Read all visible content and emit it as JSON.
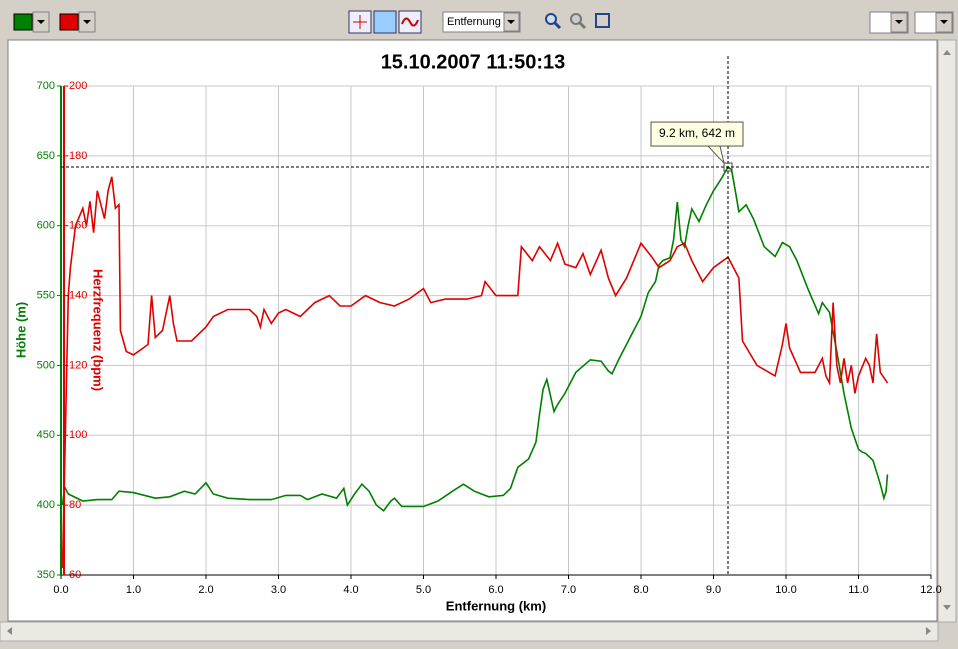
{
  "toolbar": {
    "axis_combo": "Entfernung"
  },
  "chart_data": {
    "type": "line",
    "title": "15.10.2007 11:50:13",
    "x_label": "Entfernung (km)",
    "y_label": "Höhe (m)",
    "y2_label": "Herzfrequenz (bpm)",
    "xlim": [
      0,
      12
    ],
    "ylim": [
      350,
      700
    ],
    "y2lim": [
      60,
      200
    ],
    "xticks": [
      {
        "value": 0,
        "label": "0.0"
      },
      {
        "value": 1,
        "label": "1.0"
      },
      {
        "value": 2,
        "label": "2.0"
      },
      {
        "value": 3,
        "label": "3.0"
      },
      {
        "value": 4,
        "label": "4.0"
      },
      {
        "value": 5,
        "label": "5.0"
      },
      {
        "value": 6,
        "label": "6.0"
      },
      {
        "value": 7,
        "label": "7.0"
      },
      {
        "value": 8,
        "label": "8.0"
      },
      {
        "value": 9,
        "label": "9.0"
      },
      {
        "value": 10,
        "label": "10.0"
      },
      {
        "value": 11,
        "label": "11.0"
      },
      {
        "value": 12,
        "label": "12.0"
      }
    ],
    "yticks": [
      350,
      400,
      450,
      500,
      550,
      600,
      650,
      700
    ],
    "y2ticks": [
      60,
      80,
      100,
      120,
      140,
      160,
      180,
      200
    ],
    "grid": true,
    "series": [
      {
        "name": "Höhe (m)",
        "color": "#008000",
        "x": [
          0.02,
          0.05,
          0.1,
          0.3,
          0.5,
          0.7,
          0.8,
          1.0,
          1.3,
          1.5,
          1.7,
          1.85,
          2.0,
          2.1,
          2.3,
          2.6,
          2.9,
          3.1,
          3.3,
          3.4,
          3.6,
          3.8,
          3.9,
          3.95,
          4.05,
          4.15,
          4.25,
          4.35,
          4.45,
          4.55,
          4.6,
          4.7,
          5.0,
          5.2,
          5.4,
          5.55,
          5.7,
          5.9,
          6.1,
          6.2,
          6.3,
          6.45,
          6.55,
          6.6,
          6.65,
          6.7,
          6.8,
          6.85,
          6.95,
          7.1,
          7.3,
          7.45,
          7.55,
          7.6,
          7.7,
          7.85,
          8.0,
          8.1,
          8.2,
          8.25,
          8.3,
          8.4,
          8.45,
          8.5,
          8.55,
          8.6,
          8.65,
          8.7,
          8.8,
          8.9,
          9.0,
          9.1,
          9.2,
          9.25,
          9.3,
          9.35,
          9.45,
          9.55,
          9.7,
          9.85,
          9.95,
          10.05,
          10.15,
          10.3,
          10.45,
          10.5,
          10.6,
          10.7,
          10.8,
          10.9,
          11.0,
          11.05,
          11.1,
          11.2,
          11.3,
          11.35,
          11.38,
          11.4
        ],
        "values": [
          400,
          413,
          408,
          403,
          404,
          404,
          410,
          409,
          405,
          406,
          410,
          408,
          416,
          408,
          405,
          404,
          404,
          407,
          407,
          404,
          408,
          405,
          412,
          400,
          408,
          415,
          410,
          400,
          396,
          403,
          405,
          399,
          399,
          403,
          410,
          415,
          410,
          406,
          407,
          412,
          427,
          433,
          445,
          465,
          483,
          490,
          467,
          472,
          480,
          495,
          504,
          503,
          496,
          494,
          505,
          520,
          535,
          552,
          560,
          572,
          575,
          577,
          590,
          617,
          590,
          585,
          600,
          612,
          603,
          615,
          625,
          633,
          642,
          640,
          625,
          610,
          615,
          605,
          585,
          578,
          588,
          585,
          575,
          555,
          537,
          545,
          538,
          510,
          480,
          455,
          440,
          438,
          437,
          432,
          415,
          405,
          410,
          422
        ]
      },
      {
        "name": "Herzfrequenz (bpm)",
        "color": "#e00000",
        "axis": "y2",
        "x": [
          0.02,
          0.05,
          0.08,
          0.1,
          0.13,
          0.2,
          0.3,
          0.35,
          0.4,
          0.45,
          0.5,
          0.6,
          0.65,
          0.7,
          0.75,
          0.8,
          0.82,
          0.9,
          1.0,
          1.2,
          1.25,
          1.3,
          1.4,
          1.5,
          1.55,
          1.6,
          1.8,
          2.0,
          2.1,
          2.3,
          2.6,
          2.7,
          2.75,
          2.8,
          2.9,
          3.0,
          3.1,
          3.3,
          3.5,
          3.7,
          3.85,
          4.0,
          4.2,
          4.4,
          4.6,
          4.8,
          5.0,
          5.1,
          5.3,
          5.6,
          5.8,
          5.85,
          6.0,
          6.3,
          6.35,
          6.5,
          6.6,
          6.75,
          6.85,
          6.95,
          7.1,
          7.2,
          7.3,
          7.45,
          7.55,
          7.65,
          7.8,
          7.9,
          8.0,
          8.15,
          8.25,
          8.4,
          8.5,
          8.6,
          8.7,
          8.85,
          9.0,
          9.2,
          9.35,
          9.4,
          9.6,
          9.85,
          9.95,
          10.0,
          10.05,
          10.2,
          10.4,
          10.5,
          10.55,
          10.6,
          10.65,
          10.7,
          10.75,
          10.8,
          10.85,
          10.9,
          10.95,
          11.0,
          11.1,
          11.15,
          11.2,
          11.25,
          11.3,
          11.4
        ],
        "values": [
          62,
          90,
          120,
          140,
          148,
          160,
          165,
          160,
          167,
          158,
          170,
          162,
          170,
          174,
          165,
          166,
          130,
          124,
          123,
          126,
          140,
          128,
          130,
          140,
          132,
          127,
          127,
          131,
          134,
          136,
          136,
          134,
          131,
          136,
          132,
          135,
          136,
          134,
          138,
          140,
          137,
          137,
          140,
          138,
          137,
          139,
          142,
          138,
          139,
          139,
          140,
          144,
          140,
          140,
          154,
          150,
          154,
          150,
          155,
          149,
          148,
          152,
          146,
          153,
          145,
          140,
          145,
          150,
          155,
          151,
          148,
          150,
          154,
          155,
          150,
          144,
          148,
          151,
          145,
          127,
          120,
          117,
          126,
          132,
          125,
          118,
          118,
          122,
          117,
          115,
          138,
          120,
          115,
          122,
          115,
          120,
          112,
          117,
          122,
          120,
          115,
          129,
          118,
          115
        ]
      }
    ],
    "crosshair": {
      "x": 9.2,
      "y": 642,
      "label": "9.2 km, 642 m"
    }
  }
}
